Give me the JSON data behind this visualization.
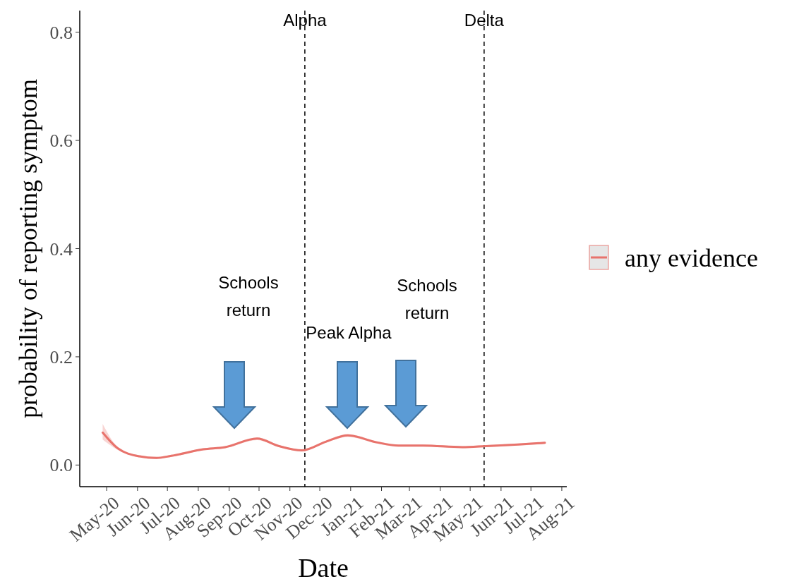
{
  "chart_data": {
    "type": "line",
    "xlabel": "Date",
    "ylabel": "probability of reporting symptom",
    "x": [
      "2020-04-27",
      "2020-05-12",
      "2020-06-03",
      "2020-06-20",
      "2020-07-05",
      "2020-08-06",
      "2020-08-28",
      "2020-09-29",
      "2020-10-21",
      "2020-11-13",
      "2020-12-07",
      "2020-12-29",
      "2021-01-27",
      "2021-02-18",
      "2021-03-15",
      "2021-04-23",
      "2021-05-17",
      "2021-06-18",
      "2021-07-15"
    ],
    "series": [
      {
        "name": "any evidence",
        "color": "#e8736c",
        "values": [
          0.06,
          0.031,
          0.016,
          0.013,
          0.017,
          0.029,
          0.033,
          0.049,
          0.035,
          0.027,
          0.043,
          0.055,
          0.042,
          0.036,
          0.036,
          0.033,
          0.035,
          0.038,
          0.041
        ],
        "lower": [
          0.047,
          0.028,
          0.014,
          0.011,
          0.015,
          0.027,
          0.031,
          0.046,
          0.033,
          0.025,
          0.041,
          0.052,
          0.04,
          0.034,
          0.034,
          0.031,
          0.033,
          0.036,
          0.039
        ],
        "upper": [
          0.076,
          0.034,
          0.018,
          0.015,
          0.019,
          0.031,
          0.035,
          0.051,
          0.037,
          0.029,
          0.045,
          0.057,
          0.044,
          0.038,
          0.038,
          0.035,
          0.037,
          0.04,
          0.043
        ]
      }
    ],
    "xlim": [
      "2020-04-04",
      "2021-08-06"
    ],
    "xticks": [
      {
        "value": "2020-05-01",
        "label": "May-20"
      },
      {
        "value": "2020-06-01",
        "label": "Jun-20"
      },
      {
        "value": "2020-07-01",
        "label": "Jul-20"
      },
      {
        "value": "2020-08-01",
        "label": "Aug-20"
      },
      {
        "value": "2020-09-01",
        "label": "Sep-20"
      },
      {
        "value": "2020-10-01",
        "label": "Oct-20"
      },
      {
        "value": "2020-11-01",
        "label": "Nov-20"
      },
      {
        "value": "2020-12-01",
        "label": "Dec-20"
      },
      {
        "value": "2021-01-01",
        "label": "Jan-21"
      },
      {
        "value": "2021-02-01",
        "label": "Feb-21"
      },
      {
        "value": "2021-03-01",
        "label": "Mar-21"
      },
      {
        "value": "2021-04-01",
        "label": "Apr-21"
      },
      {
        "value": "2021-05-01",
        "label": "May-21"
      },
      {
        "value": "2021-06-01",
        "label": "Jun-21"
      },
      {
        "value": "2021-07-01",
        "label": "Jul-21"
      },
      {
        "value": "2021-08-01",
        "label": "Aug-21"
      }
    ],
    "ylim": [
      -0.04,
      0.84
    ],
    "yticks": [
      {
        "value": 0,
        "label": "0.0"
      },
      0.2,
      0.4,
      0.6,
      0.8
    ],
    "ref_lines": [
      {
        "axis": "x",
        "value": "2020-11-16",
        "label": "Alpha",
        "line_style": "dashed"
      },
      {
        "axis": "x",
        "value": "2021-05-15",
        "label": "Delta",
        "line_style": "dashed"
      }
    ],
    "annotations": [
      "Schools return",
      "Peak Alpha",
      "Schools return"
    ],
    "grid": false,
    "legend": "right",
    "marker": "none",
    "line_style": "solid"
  }
}
